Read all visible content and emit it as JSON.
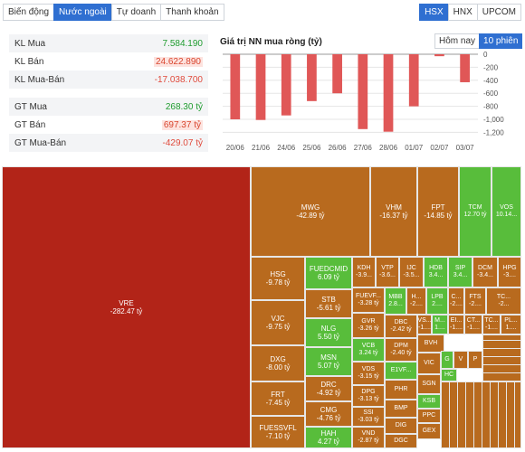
{
  "top_tabs": [
    "Biến động",
    "Nước ngoài",
    "Tự doanh",
    "Thanh khoản"
  ],
  "exchange_tabs": [
    "HSX",
    "HNX",
    "UPCOM"
  ],
  "stats": {
    "kl_mua": {
      "label": "KL Mua",
      "value": "7.584.190"
    },
    "kl_ban": {
      "label": "KL Bán",
      "value": "24.622.890"
    },
    "kl_mua_ban": {
      "label": "KL Mua-Bán",
      "value": "-17.038.700"
    },
    "gt_mua": {
      "label": "GT Mua",
      "value": "268.30 tỷ"
    },
    "gt_ban": {
      "label": "GT Bán",
      "value": "697.37 tỷ"
    },
    "gt_mua_ban": {
      "label": "GT Mua-Bán",
      "value": "-429.07 tỷ"
    }
  },
  "chart_title": "Giá trị NN mua ròng (tỷ)",
  "period_tabs": [
    "Hôm nay",
    "10 phiên"
  ],
  "chart_data": {
    "type": "bar",
    "title": "Giá trị NN mua ròng (tỷ)",
    "categories": [
      "20/06",
      "21/06",
      "24/06",
      "25/06",
      "26/06",
      "27/06",
      "28/06",
      "01/07",
      "02/07",
      "03/07"
    ],
    "values": [
      -1000,
      -1010,
      -940,
      -720,
      -600,
      -1150,
      -1190,
      -800,
      -30,
      -430
    ],
    "yticks": [
      0,
      -200,
      -400,
      -600,
      -800,
      -1000,
      -1200
    ],
    "ytick_labels": [
      "0",
      "-200",
      "-400",
      "-600",
      "-800",
      "-1,000",
      "-1,200"
    ],
    "ylim": [
      -1250,
      0
    ],
    "color": "#e05757"
  },
  "treemap": [
    {
      "t": "VRE",
      "v": "-282.47 tỷ"
    },
    {
      "t": "MWG",
      "v": "-42.89 tỷ"
    },
    {
      "t": "VHM",
      "v": "-16.37 tỷ"
    },
    {
      "t": "FPT",
      "v": "-14.85 tỷ"
    },
    {
      "t": "TCM",
      "v": "12.70 tỷ"
    },
    {
      "t": "VOS",
      "v": "10.14..."
    },
    {
      "t": "HSG",
      "v": "-9.78 tỷ"
    },
    {
      "t": "FUEDCMID",
      "v": "6.09 tỷ"
    },
    {
      "t": "KDH",
      "v": "-3.9..."
    },
    {
      "t": "VTP",
      "v": "-3.6..."
    },
    {
      "t": "IJC",
      "v": "-3.5..."
    },
    {
      "t": "HDB",
      "v": "3.4..."
    },
    {
      "t": "SIP",
      "v": "3.4..."
    },
    {
      "t": "DCM",
      "v": "-3.4..."
    },
    {
      "t": "HPG",
      "v": "-3...."
    },
    {
      "t": "STB",
      "v": "-5.61 tỷ"
    },
    {
      "t": "FUEVF...",
      "v": "-3.28 tỷ"
    },
    {
      "t": "MBB",
      "v": "2.8..."
    },
    {
      "t": "H...",
      "v": "-2...."
    },
    {
      "t": "LPB",
      "v": "2...."
    },
    {
      "t": "C...",
      "v": "-2...."
    },
    {
      "t": "FTS",
      "v": "-2...."
    },
    {
      "t": "TC...",
      "v": "-2..."
    },
    {
      "t": "VJC",
      "v": "-9.75 tỷ"
    },
    {
      "t": "NLG",
      "v": "5.50 tỷ"
    },
    {
      "t": "GVR",
      "v": "-3.26 tỷ"
    },
    {
      "t": "DBC",
      "v": "-2.42 tỷ"
    },
    {
      "t": "VS...",
      "v": "-1...."
    },
    {
      "t": "M...",
      "v": "1...."
    },
    {
      "t": "EI...",
      "v": "-1...."
    },
    {
      "t": "CT...",
      "v": "-1...."
    },
    {
      "t": "TC...",
      "v": "-1...."
    },
    {
      "t": "PL...",
      "v": "1...."
    },
    {
      "t": "DXG",
      "v": "-8.00 tỷ"
    },
    {
      "t": "MSN",
      "v": "5.07 tỷ"
    },
    {
      "t": "VCB",
      "v": "3.24 tỷ"
    },
    {
      "t": "DPM",
      "v": "-2.40 tỷ"
    },
    {
      "t": "BVH",
      "v": ""
    },
    {
      "t": "VDS",
      "v": "-3.15 tỷ"
    },
    {
      "t": "E1VF...",
      "v": ""
    },
    {
      "t": "VIC",
      "v": ""
    },
    {
      "t": "G",
      "v": ""
    },
    {
      "t": "V",
      "v": ""
    },
    {
      "t": "P",
      "v": ""
    },
    {
      "t": "P",
      "v": ""
    },
    {
      "t": "HC",
      "v": ""
    },
    {
      "t": "FRT",
      "v": "-7.45 tỷ"
    },
    {
      "t": "DRC",
      "v": "-4.92 tỷ"
    },
    {
      "t": "DPG",
      "v": "-3.13 tỷ"
    },
    {
      "t": "PHR",
      "v": ""
    },
    {
      "t": "SGN",
      "v": ""
    },
    {
      "t": "KSB",
      "v": ""
    },
    {
      "t": "CMG",
      "v": "-4.76 tỷ"
    },
    {
      "t": "SSI",
      "v": "-3.03 tỷ"
    },
    {
      "t": "BMP",
      "v": ""
    },
    {
      "t": "PPC",
      "v": ""
    },
    {
      "t": "FUESSVFL",
      "v": "-7.10 tỷ"
    },
    {
      "t": "HAH",
      "v": "4.27 tỷ"
    },
    {
      "t": "VND",
      "v": "-2.87 tỷ"
    },
    {
      "t": "DIG",
      "v": ""
    },
    {
      "t": "DGC",
      "v": ""
    },
    {
      "t": "GEX",
      "v": ""
    }
  ]
}
